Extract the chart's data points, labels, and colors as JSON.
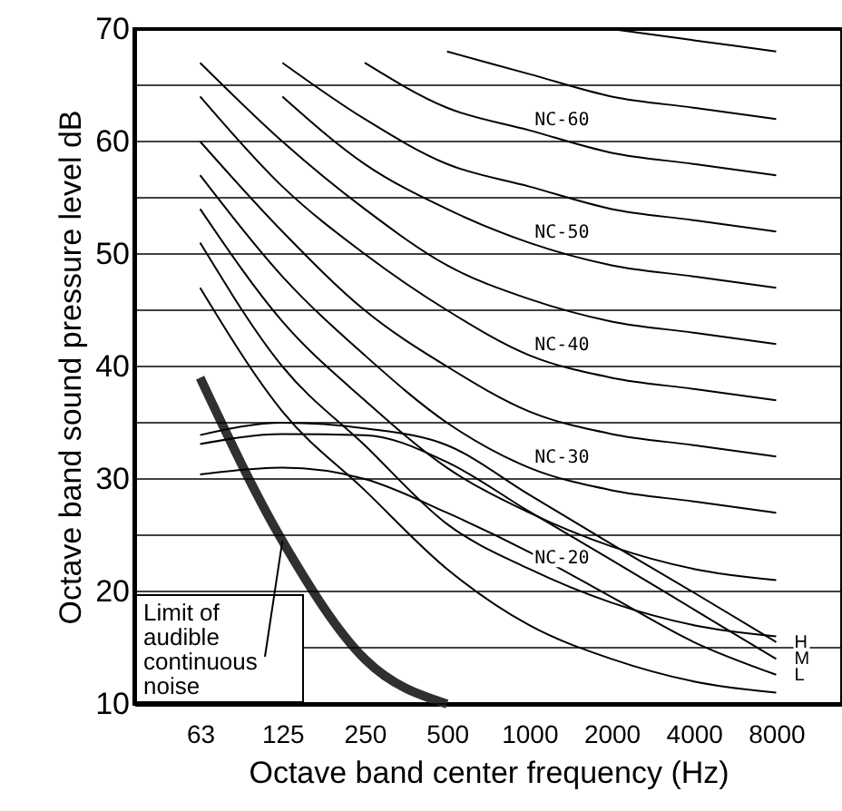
{
  "chart_data": {
    "type": "line",
    "xlabel": "Octave band center frequency (Hz)",
    "ylabel": "Octave band sound pressure level dB",
    "categories": [
      "63",
      "125",
      "250",
      "500",
      "1000",
      "2000",
      "4000",
      "8000"
    ],
    "ylim": [
      10,
      70
    ],
    "yticks": [
      10,
      {
        "value": 15,
        "label": null
      },
      20,
      {
        "value": 25,
        "label": null
      },
      30,
      {
        "value": 35,
        "label": null
      },
      40,
      {
        "value": 45,
        "label": null
      },
      50,
      {
        "value": 55,
        "label": null
      },
      60,
      {
        "value": 65,
        "label": null
      },
      70
    ],
    "grid": "y",
    "marker": "none",
    "line_style": "solid",
    "annotations": [
      {
        "text": "Limit of\naudible\ncontinuous\nnoise",
        "x": "125",
        "y": 24.5
      }
    ],
    "series": [
      {
        "color": "#303030",
        "values": [
          39,
          24.5,
          14,
          10,
          null,
          null,
          null,
          null
        ]
      },
      {
        "color": "#000000",
        "values": [
          47,
          36,
          29,
          22,
          17,
          14,
          12,
          11
        ]
      },
      {
        "name": "NC-20",
        "color": "#000000",
        "values": [
          51,
          40,
          33,
          26,
          22,
          19,
          17,
          16
        ]
      },
      {
        "color": "#000000",
        "values": [
          54,
          44,
          37,
          31,
          27,
          24,
          22,
          21
        ]
      },
      {
        "name": "NC-30",
        "color": "#000000",
        "values": [
          57,
          48,
          41,
          35,
          31,
          29,
          28,
          27
        ]
      },
      {
        "color": "#000000",
        "values": [
          60,
          52,
          45,
          40,
          36,
          34,
          33,
          32
        ]
      },
      {
        "name": "NC-40",
        "color": "#000000",
        "values": [
          64,
          56,
          50,
          45,
          41,
          39,
          38,
          37
        ]
      },
      {
        "color": "#000000",
        "values": [
          67,
          60,
          54,
          49,
          46,
          44,
          43,
          42
        ]
      },
      {
        "name": "NC-50",
        "color": "#000000",
        "values": [
          null,
          64,
          58,
          54,
          51,
          49,
          48,
          47
        ]
      },
      {
        "color": "#000000",
        "values": [
          null,
          67,
          62,
          58,
          56,
          54,
          53,
          52
        ]
      },
      {
        "name": "NC-60",
        "color": "#000000",
        "values": [
          null,
          null,
          67,
          63,
          61,
          59,
          58,
          57
        ]
      },
      {
        "color": "#000000",
        "values": [
          null,
          null,
          null,
          68,
          66,
          64,
          63,
          62
        ]
      },
      {
        "color": "#000000",
        "values": [
          null,
          null,
          null,
          null,
          null,
          70,
          69,
          68
        ]
      },
      {
        "name": "H",
        "color": "#000000",
        "values": [
          33.9,
          35,
          34.5,
          33,
          28.6,
          24.2,
          19.9,
          15.5
        ]
      },
      {
        "name": "M",
        "color": "#000000",
        "values": [
          33.1,
          34,
          33.9,
          31.5,
          27.1,
          22.8,
          18.4,
          14
        ]
      },
      {
        "name": "L",
        "color": "#000000",
        "values": [
          30.4,
          31,
          30,
          27,
          23.5,
          19.5,
          15.5,
          12.6
        ]
      }
    ]
  }
}
